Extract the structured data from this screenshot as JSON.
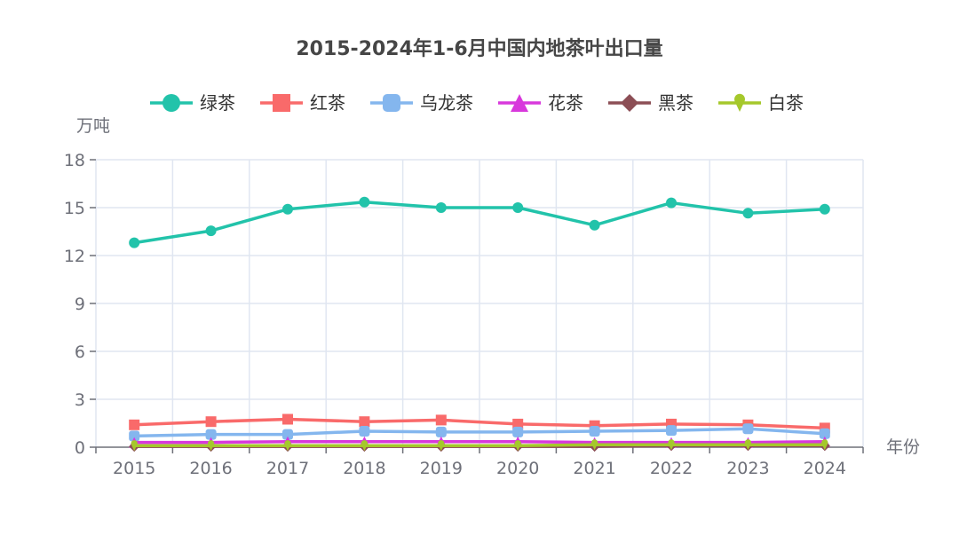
{
  "chart_data": {
    "type": "line",
    "title": "2015-2024年1-6月中国内地茶叶出口量",
    "ylabel": "万吨",
    "xlabel": "年份",
    "ylim": [
      0,
      18
    ],
    "yticks": [
      0,
      3,
      6,
      9,
      12,
      15,
      18
    ],
    "grid": true,
    "legend_position": "top-center",
    "categories": [
      "2015",
      "2016",
      "2017",
      "2018",
      "2019",
      "2020",
      "2021",
      "2022",
      "2023",
      "2024"
    ],
    "series": [
      {
        "name": "绿茶",
        "color": "#22c3aa",
        "symbol": "circle",
        "values": [
          12.8,
          13.55,
          14.9,
          15.35,
          15.0,
          15.0,
          13.9,
          15.3,
          14.65,
          14.9
        ]
      },
      {
        "name": "红茶",
        "color": "#f96a6a",
        "symbol": "rect",
        "values": [
          1.4,
          1.6,
          1.75,
          1.6,
          1.7,
          1.45,
          1.35,
          1.45,
          1.4,
          1.2
        ]
      },
      {
        "name": "乌龙茶",
        "color": "#84b6ee",
        "symbol": "roundRect",
        "values": [
          0.7,
          0.8,
          0.8,
          1.0,
          0.95,
          0.95,
          1.0,
          1.05,
          1.15,
          0.85
        ]
      },
      {
        "name": "花茶",
        "color": "#d838dc",
        "symbol": "triangle",
        "values": [
          0.3,
          0.3,
          0.35,
          0.35,
          0.35,
          0.35,
          0.3,
          0.3,
          0.3,
          0.35
        ]
      },
      {
        "name": "黑茶",
        "color": "#8c4e55",
        "symbol": "diamond",
        "values": [
          0.05,
          0.05,
          0.05,
          0.05,
          0.05,
          0.05,
          0.05,
          0.1,
          0.1,
          0.1
        ]
      },
      {
        "name": "白茶",
        "color": "#a5c82b",
        "symbol": "pin",
        "values": [
          0.1,
          0.1,
          0.1,
          0.1,
          0.1,
          0.1,
          0.15,
          0.15,
          0.15,
          0.15
        ]
      }
    ]
  }
}
